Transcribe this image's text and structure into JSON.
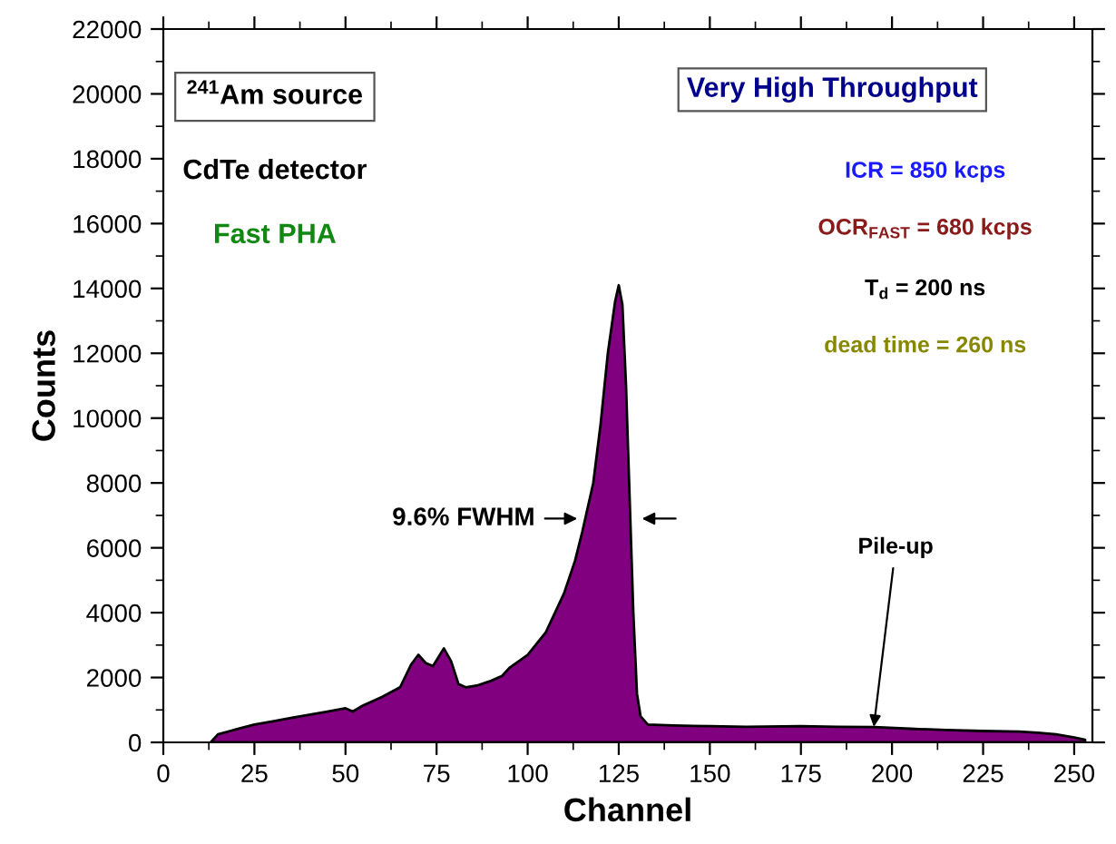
{
  "chart_data": {
    "type": "area",
    "xlabel": "Channel",
    "ylabel": "Counts",
    "series": [
      {
        "color": "#800080",
        "x": [
          13,
          15,
          20,
          25,
          30,
          35,
          40,
          45,
          50,
          52,
          55,
          60,
          65,
          68,
          70,
          72,
          74,
          77,
          79,
          81,
          83,
          86,
          90,
          93,
          95,
          100,
          105,
          110,
          113,
          115,
          118,
          120,
          122,
          124,
          125,
          126,
          127,
          128,
          129,
          130,
          131,
          133,
          140,
          150,
          160,
          175,
          185,
          195,
          205,
          215,
          225,
          235,
          240,
          245,
          250,
          253
        ],
        "values": [
          0,
          250,
          400,
          550,
          650,
          750,
          850,
          950,
          1050,
          950,
          1150,
          1400,
          1700,
          2400,
          2700,
          2450,
          2350,
          2900,
          2500,
          1800,
          1700,
          1750,
          1900,
          2050,
          2300,
          2700,
          3400,
          4600,
          5600,
          6500,
          8000,
          9800,
          12000,
          13600,
          14100,
          13500,
          11000,
          7500,
          4000,
          1500,
          800,
          550,
          520,
          500,
          480,
          500,
          480,
          470,
          420,
          380,
          350,
          330,
          300,
          250,
          150,
          80
        ]
      }
    ],
    "xlim": [
      0,
      255
    ],
    "xticks": [
      0,
      25,
      50,
      75,
      100,
      125,
      150,
      175,
      200,
      225,
      250
    ],
    "ylim": [
      0,
      22000
    ],
    "yticks": [
      0,
      2000,
      4000,
      6000,
      8000,
      10000,
      12000,
      14000,
      16000,
      18000,
      20000,
      22000
    ],
    "grid": false,
    "annotations": [
      "$^{241}$Am source",
      "CdTe detector",
      "Fast PHA",
      "Very High Throughput",
      "ICR = 850 kcps",
      "OCR$_{FAST}$ = 680 kcps",
      "T$_{d}$ = 200 ns",
      "dead time = 260 ns",
      {
        "text": "9.6% FWHM",
        "x": 115,
        "y": 6900
      },
      {
        "text": "Pile-up",
        "x": 195,
        "y": 480
      }
    ]
  }
}
